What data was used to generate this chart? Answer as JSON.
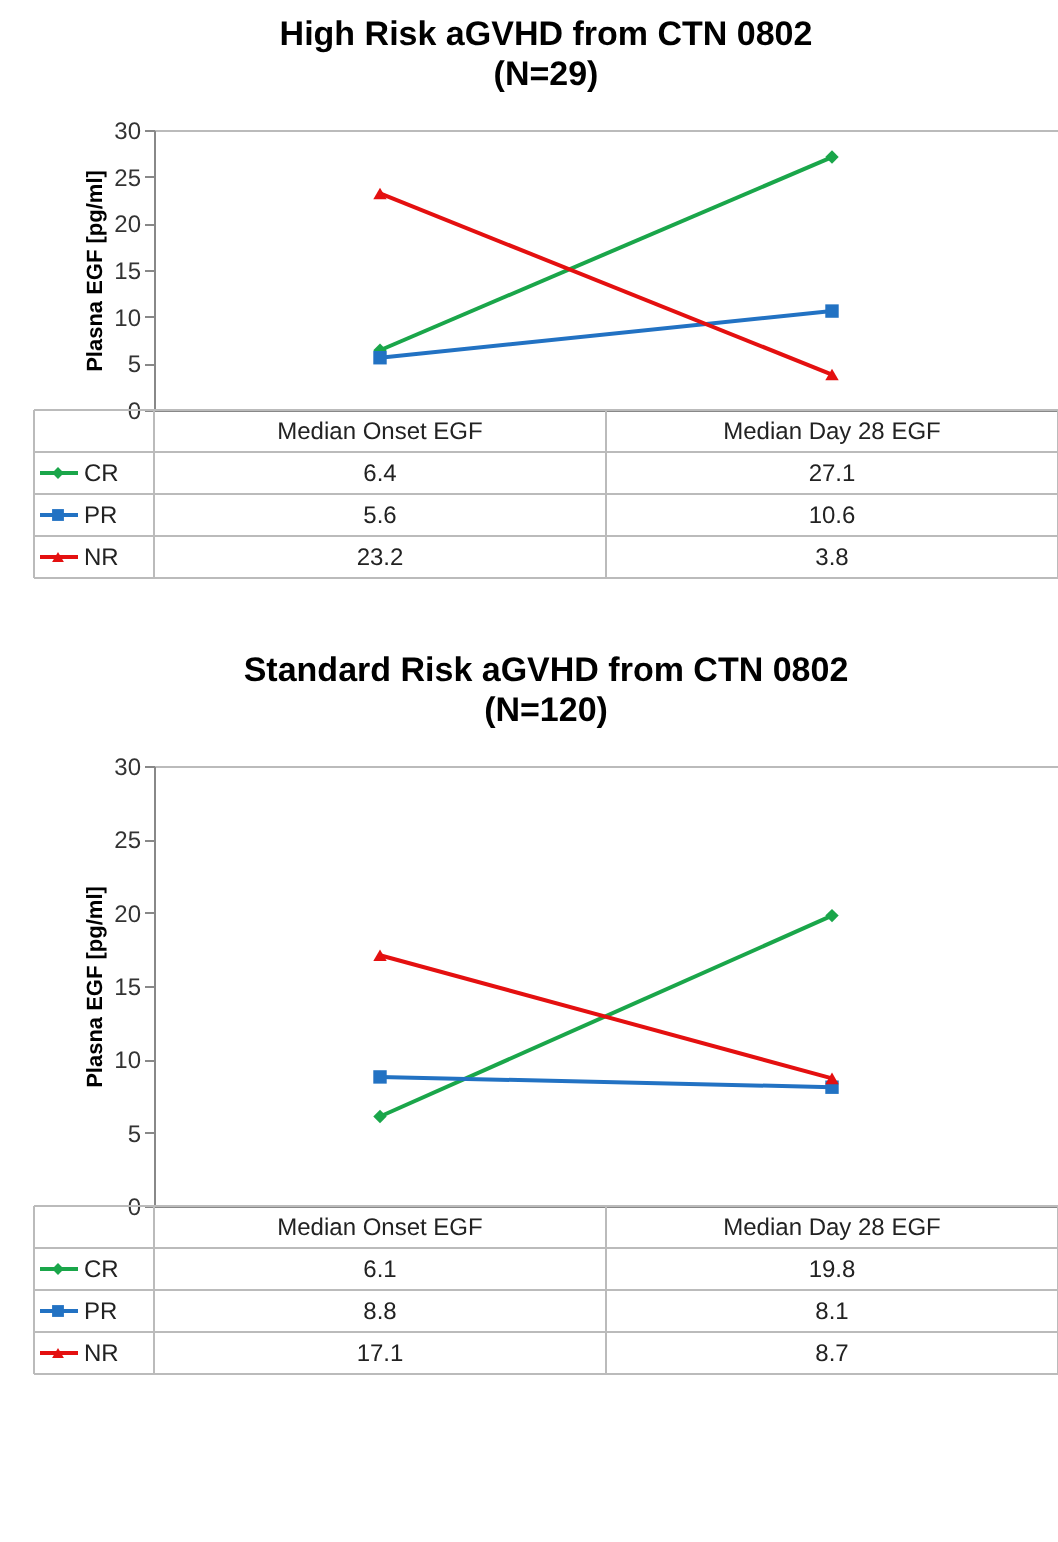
{
  "chart_data": [
    {
      "type": "line",
      "title": "High Risk aGVHD from CTN 0802",
      "subtitle": "(N=29)",
      "ylabel": "Plasna EGF [pg/ml]",
      "categories": [
        "Median Onset EGF",
        "Median Day 28 EGF"
      ],
      "series": [
        {
          "name": "CR",
          "color": "#1aa64a",
          "values": [
            6.4,
            27.1
          ],
          "marker": "diamond"
        },
        {
          "name": "PR",
          "color": "#2272c3",
          "values": [
            5.6,
            10.6
          ],
          "marker": "square"
        },
        {
          "name": "NR",
          "color": "#e41010",
          "values": [
            23.2,
            3.8
          ],
          "marker": "triangle"
        }
      ],
      "ylim": [
        0,
        30
      ],
      "yticks": [
        0,
        5,
        10,
        15,
        20,
        25,
        30
      ],
      "data_labels": true,
      "legend": "bottom",
      "line_style": "solid"
    },
    {
      "type": "line",
      "title": "Standard Risk aGVHD from CTN 0802",
      "subtitle": "(N=120)",
      "ylabel": "Plasna EGF [pg/ml]",
      "categories": [
        "Median Onset EGF",
        "Median Day 28 EGF"
      ],
      "series": [
        {
          "name": "CR",
          "color": "#1aa64a",
          "values": [
            6.1,
            19.8
          ],
          "marker": "diamond"
        },
        {
          "name": "PR",
          "color": "#2272c3",
          "values": [
            8.8,
            8.1
          ],
          "marker": "square"
        },
        {
          "name": "NR",
          "color": "#e41010",
          "values": [
            17.1,
            8.7
          ],
          "marker": "triangle"
        }
      ],
      "ylim": [
        0,
        30
      ],
      "yticks": [
        0,
        5,
        10,
        15,
        20,
        25,
        30
      ],
      "data_labels": true,
      "legend": "bottom",
      "line_style": "solid"
    }
  ]
}
